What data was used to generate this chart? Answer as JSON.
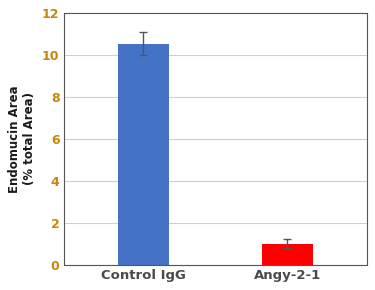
{
  "categories": [
    "Control IgG",
    "Angy-2-1"
  ],
  "values": [
    10.55,
    1.0
  ],
  "errors": [
    0.55,
    0.2
  ],
  "bar_colors": [
    "#4472C4",
    "#FF0000"
  ],
  "ylabel_line1": "Endomucin Area",
  "ylabel_line2": "(% total Area)",
  "ylim": [
    0,
    12
  ],
  "yticks": [
    0,
    2,
    4,
    6,
    8,
    10,
    12
  ],
  "ytick_color": "#C8860A",
  "xtick_color": "#4A4A4A",
  "ylabel_color": "#1A1A1A",
  "bar_width": 0.35,
  "background_color": "#FFFFFF",
  "grid_color": "#D0D0D0",
  "error_cap_size": 3,
  "error_color": "#555555",
  "figsize": [
    3.75,
    2.9
  ],
  "dpi": 100
}
